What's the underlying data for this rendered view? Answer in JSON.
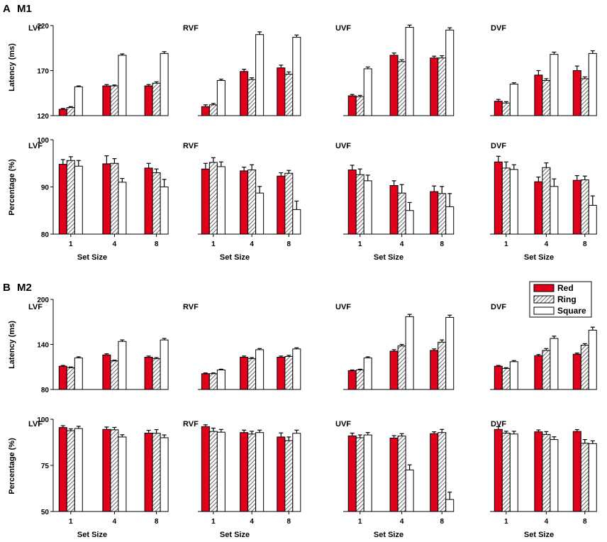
{
  "panels": [
    {
      "letter": "A",
      "monkey": "M1"
    },
    {
      "letter": "B",
      "monkey": "M2"
    }
  ],
  "legend": {
    "items": [
      {
        "name": "Red",
        "fill": "#e0001b"
      },
      {
        "name": "Ring",
        "fill": "hatch"
      },
      {
        "name": "Square",
        "fill": "#ffffff"
      }
    ]
  },
  "colors": {
    "red": "#e0001b",
    "ring_hatch": "#6f6f6f",
    "square": "#ffffff",
    "stroke": "#000000"
  },
  "chart_data": [
    {
      "id": "M1-latency",
      "type": "bar",
      "panel": "M1",
      "ylabel": "Latency (ms)",
      "xlabel": "",
      "ylim": [
        120,
        220
      ],
      "yticks": [
        120,
        170,
        220
      ],
      "categories": [
        "1",
        "4",
        "8"
      ],
      "series_names": [
        "Red",
        "Ring",
        "Square"
      ],
      "subplots": [
        {
          "title": "LVF",
          "series": [
            {
              "name": "Red",
              "values": [
                127,
                153,
                153
              ],
              "errors": [
                1,
                1.5,
                1.5
              ]
            },
            {
              "name": "Ring",
              "values": [
                129,
                153,
                156
              ],
              "errors": [
                1,
                1,
                1.5
              ]
            },
            {
              "name": "Square",
              "values": [
                152,
                187,
                189
              ],
              "errors": [
                1,
                1.5,
                2
              ]
            }
          ]
        },
        {
          "title": "RVF",
          "series": [
            {
              "name": "Red",
              "values": [
                130,
                169,
                173
              ],
              "errors": [
                2,
                2.5,
                3
              ]
            },
            {
              "name": "Ring",
              "values": [
                132,
                160,
                166
              ],
              "errors": [
                1.5,
                2,
                2.5
              ]
            },
            {
              "name": "Square",
              "values": [
                159,
                210,
                207
              ],
              "errors": [
                1.5,
                3,
                2.5
              ]
            }
          ]
        },
        {
          "title": "UVF",
          "series": [
            {
              "name": "Red",
              "values": [
                142,
                187,
                184
              ],
              "errors": [
                1.5,
                2.5,
                2
              ]
            },
            {
              "name": "Ring",
              "values": [
                141,
                180,
                184
              ],
              "errors": [
                1.5,
                2,
                2.5
              ]
            },
            {
              "name": "Square",
              "values": [
                172,
                218,
                215
              ],
              "errors": [
                2,
                2.5,
                2.5
              ]
            }
          ]
        },
        {
          "title": "DVF",
          "series": [
            {
              "name": "Red",
              "values": [
                136,
                165,
                170
              ],
              "errors": [
                2,
                5,
                5
              ]
            },
            {
              "name": "Ring",
              "values": [
                134,
                159,
                161
              ],
              "errors": [
                1.5,
                2,
                2
              ]
            },
            {
              "name": "Square",
              "values": [
                155,
                188,
                189
              ],
              "errors": [
                1.5,
                2.5,
                3
              ]
            }
          ]
        }
      ]
    },
    {
      "id": "M1-percentage",
      "type": "bar",
      "panel": "M1",
      "ylabel": "Percentage (%)",
      "xlabel": "Set Size",
      "ylim": [
        80,
        100
      ],
      "yticks": [
        80,
        90,
        100
      ],
      "categories": [
        "1",
        "4",
        "8"
      ],
      "series_names": [
        "Red",
        "Ring",
        "Square"
      ],
      "subplots": [
        {
          "title": "LVF",
          "series": [
            {
              "name": "Red",
              "values": [
                94.8,
                94.9,
                94.0
              ],
              "errors": [
                1.0,
                1.7,
                1.0
              ]
            },
            {
              "name": "Ring",
              "values": [
                95.6,
                95.0,
                93.0
              ],
              "errors": [
                0.8,
                1.0,
                0.8
              ]
            },
            {
              "name": "Square",
              "values": [
                94.4,
                91.0,
                90.0
              ],
              "errors": [
                1.2,
                0.8,
                1.6
              ]
            }
          ]
        },
        {
          "title": "RVF",
          "series": [
            {
              "name": "Red",
              "values": [
                93.8,
                93.4,
                92.3
              ],
              "errors": [
                1.2,
                0.8,
                0.7
              ]
            },
            {
              "name": "Ring",
              "values": [
                95.2,
                93.6,
                92.9
              ],
              "errors": [
                1.0,
                1.1,
                0.6
              ]
            },
            {
              "name": "Square",
              "values": [
                94.3,
                88.7,
                85.2
              ],
              "errors": [
                1.0,
                1.4,
                1.8
              ]
            }
          ]
        },
        {
          "title": "UVF",
          "series": [
            {
              "name": "Red",
              "values": [
                93.6,
                90.3,
                89.0
              ],
              "errors": [
                1.0,
                1.0,
                1.2
              ]
            },
            {
              "name": "Ring",
              "values": [
                92.6,
                88.7,
                88.6
              ],
              "errors": [
                1.2,
                1.8,
                1.5
              ]
            },
            {
              "name": "Square",
              "values": [
                91.3,
                85.0,
                85.8
              ],
              "errors": [
                1.2,
                1.7,
                2.8
              ]
            }
          ]
        },
        {
          "title": "DVF",
          "series": [
            {
              "name": "Red",
              "values": [
                95.3,
                91.1,
                91.4
              ],
              "errors": [
                1.2,
                1.0,
                1.0
              ]
            },
            {
              "name": "Ring",
              "values": [
                94.0,
                94.1,
                91.5
              ],
              "errors": [
                1.3,
                1.0,
                0.8
              ]
            },
            {
              "name": "Square",
              "values": [
                93.7,
                90.1,
                86.1
              ],
              "errors": [
                1.0,
                1.6,
                2.0
              ]
            }
          ]
        }
      ]
    },
    {
      "id": "M2-latency",
      "type": "bar",
      "panel": "M2",
      "ylabel": "Latency (ms)",
      "xlabel": "",
      "ylim": [
        80,
        200
      ],
      "yticks": [
        80,
        140,
        200
      ],
      "categories": [
        "1",
        "4",
        "8"
      ],
      "series_names": [
        "Red",
        "Ring",
        "Square"
      ],
      "subplots": [
        {
          "title": "LVF",
          "series": [
            {
              "name": "Red",
              "values": [
                111,
                126,
                123
              ],
              "errors": [
                1,
                1.5,
                1.5
              ]
            },
            {
              "name": "Ring",
              "values": [
                109,
                118,
                121
              ],
              "errors": [
                1,
                1,
                1.5
              ]
            },
            {
              "name": "Square",
              "values": [
                122,
                144,
                146
              ],
              "errors": [
                1.5,
                2,
                2
              ]
            }
          ]
        },
        {
          "title": "RVF",
          "series": [
            {
              "name": "Red",
              "values": [
                101,
                123,
                123
              ],
              "errors": [
                1,
                1.5,
                1.5
              ]
            },
            {
              "name": "Ring",
              "values": [
                101,
                121,
                124
              ],
              "errors": [
                1,
                1.5,
                1.5
              ]
            },
            {
              "name": "Square",
              "values": [
                106,
                133,
                134
              ],
              "errors": [
                1,
                1.5,
                1.5
              ]
            }
          ]
        },
        {
          "title": "UVF",
          "series": [
            {
              "name": "Red",
              "values": [
                105,
                131,
                132
              ],
              "errors": [
                1,
                2,
                2
              ]
            },
            {
              "name": "Ring",
              "values": [
                106,
                138,
                143
              ],
              "errors": [
                1,
                2,
                3
              ]
            },
            {
              "name": "Square",
              "values": [
                122,
                177,
                176
              ],
              "errors": [
                1.5,
                3,
                3
              ]
            }
          ]
        },
        {
          "title": "DVF",
          "series": [
            {
              "name": "Red",
              "values": [
                111,
                125,
                127
              ],
              "errors": [
                1,
                1.5,
                1.5
              ]
            },
            {
              "name": "Ring",
              "values": [
                108,
                132,
                139
              ],
              "errors": [
                1,
                2.5,
                2
              ]
            },
            {
              "name": "Square",
              "values": [
                117,
                148,
                159
              ],
              "errors": [
                1.5,
                3,
                4
              ]
            }
          ]
        }
      ]
    },
    {
      "id": "M2-percentage",
      "type": "bar",
      "panel": "M2",
      "ylabel": "Percentage (%)",
      "xlabel": "Set Size",
      "ylim": [
        50,
        100
      ],
      "yticks": [
        50,
        75,
        100
      ],
      "categories": [
        "1",
        "4",
        "8"
      ],
      "series_names": [
        "Red",
        "Ring",
        "Square"
      ],
      "subplots": [
        {
          "title": "LVF",
          "series": [
            {
              "name": "Red",
              "values": [
                95.5,
                94.5,
                92.5
              ],
              "errors": [
                1.0,
                1.3,
                1.5
              ]
            },
            {
              "name": "Ring",
              "values": [
                93.8,
                94.3,
                92.4
              ],
              "errors": [
                1.0,
                1.3,
                2.0
              ]
            },
            {
              "name": "Square",
              "values": [
                95.0,
                90.4,
                90.0
              ],
              "errors": [
                1.2,
                1.2,
                1.5
              ]
            }
          ]
        },
        {
          "title": "RVF",
          "series": [
            {
              "name": "Red",
              "values": [
                96.0,
                92.8,
                90.4
              ],
              "errors": [
                1.0,
                1.3,
                2.2
              ]
            },
            {
              "name": "Ring",
              "values": [
                93.4,
                92.0,
                88.4
              ],
              "errors": [
                1.8,
                1.5,
                2.0
              ]
            },
            {
              "name": "Square",
              "values": [
                93.0,
                92.8,
                92.4
              ],
              "errors": [
                1.5,
                1.3,
                1.7
              ]
            }
          ]
        },
        {
          "title": "UVF",
          "series": [
            {
              "name": "Red",
              "values": [
                91.0,
                89.8,
                92.2
              ],
              "errors": [
                1.5,
                1.3,
                1.0
              ]
            },
            {
              "name": "Ring",
              "values": [
                90.0,
                90.9,
                92.8
              ],
              "errors": [
                1.5,
                1.3,
                1.7
              ]
            },
            {
              "name": "Square",
              "values": [
                91.5,
                72.5,
                56.5
              ],
              "errors": [
                1.3,
                2.8,
                4.0
              ]
            }
          ]
        },
        {
          "title": "DVF",
          "series": [
            {
              "name": "Red",
              "values": [
                94.5,
                93.2,
                93.4
              ],
              "errors": [
                1.5,
                1.0,
                1.0
              ]
            },
            {
              "name": "Ring",
              "values": [
                92.5,
                91.8,
                87.0
              ],
              "errors": [
                1.0,
                1.5,
                2.0
              ]
            },
            {
              "name": "Square",
              "values": [
                92.0,
                89.0,
                86.8
              ],
              "errors": [
                1.5,
                1.5,
                1.5
              ]
            }
          ]
        }
      ]
    }
  ]
}
